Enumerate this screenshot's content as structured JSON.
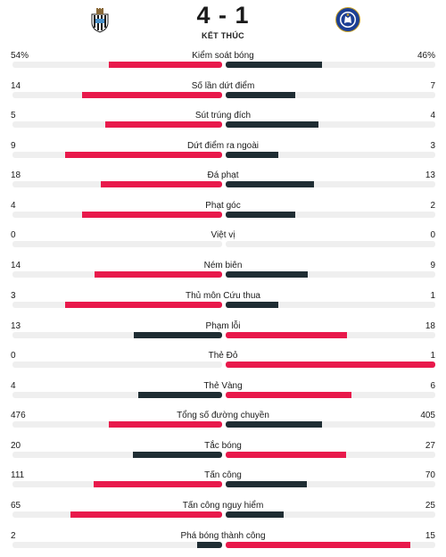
{
  "match": {
    "score": "4 - 1",
    "status": "KẾT THÚC",
    "home_logo_icon": "newcastle-crest-icon",
    "away_logo_icon": "chelsea-crest-icon"
  },
  "colors": {
    "lead": "#e8194b",
    "trail": "#1f2d33",
    "track": "#efefef"
  },
  "stats": [
    {
      "label": "Kiểm soát bóng",
      "home": "54%",
      "away": "46%",
      "home_num": 54,
      "away_num": 46
    },
    {
      "label": "Số lần dứt điểm",
      "home": "14",
      "away": "7",
      "home_num": 14,
      "away_num": 7
    },
    {
      "label": "Sút trúng đích",
      "home": "5",
      "away": "4",
      "home_num": 5,
      "away_num": 4
    },
    {
      "label": "Dứt điểm ra ngoài",
      "home": "9",
      "away": "3",
      "home_num": 9,
      "away_num": 3
    },
    {
      "label": "Đá phạt",
      "home": "18",
      "away": "13",
      "home_num": 18,
      "away_num": 13
    },
    {
      "label": "Phạt góc",
      "home": "4",
      "away": "2",
      "home_num": 4,
      "away_num": 2
    },
    {
      "label": "Việt vị",
      "home": "0",
      "away": "0",
      "home_num": 0,
      "away_num": 0
    },
    {
      "label": "Ném biên",
      "home": "14",
      "away": "9",
      "home_num": 14,
      "away_num": 9
    },
    {
      "label": "Thủ môn Cứu thua",
      "home": "3",
      "away": "1",
      "home_num": 3,
      "away_num": 1
    },
    {
      "label": "Phạm lỗi",
      "home": "13",
      "away": "18",
      "home_num": 13,
      "away_num": 18
    },
    {
      "label": "Thẻ Đỏ",
      "home": "0",
      "away": "1",
      "home_num": 0,
      "away_num": 1
    },
    {
      "label": "Thẻ Vàng",
      "home": "4",
      "away": "6",
      "home_num": 4,
      "away_num": 6
    },
    {
      "label": "Tổng số đường chuyền",
      "home": "476",
      "away": "405",
      "home_num": 476,
      "away_num": 405
    },
    {
      "label": "Tắc bóng",
      "home": "20",
      "away": "27",
      "home_num": 20,
      "away_num": 27
    },
    {
      "label": "Tấn công",
      "home": "111",
      "away": "70",
      "home_num": 111,
      "away_num": 70
    },
    {
      "label": "Tấn công nguy hiểm",
      "home": "65",
      "away": "25",
      "home_num": 65,
      "away_num": 25
    },
    {
      "label": "Phá bóng thành công",
      "home": "2",
      "away": "15",
      "home_num": 2,
      "away_num": 15
    }
  ]
}
